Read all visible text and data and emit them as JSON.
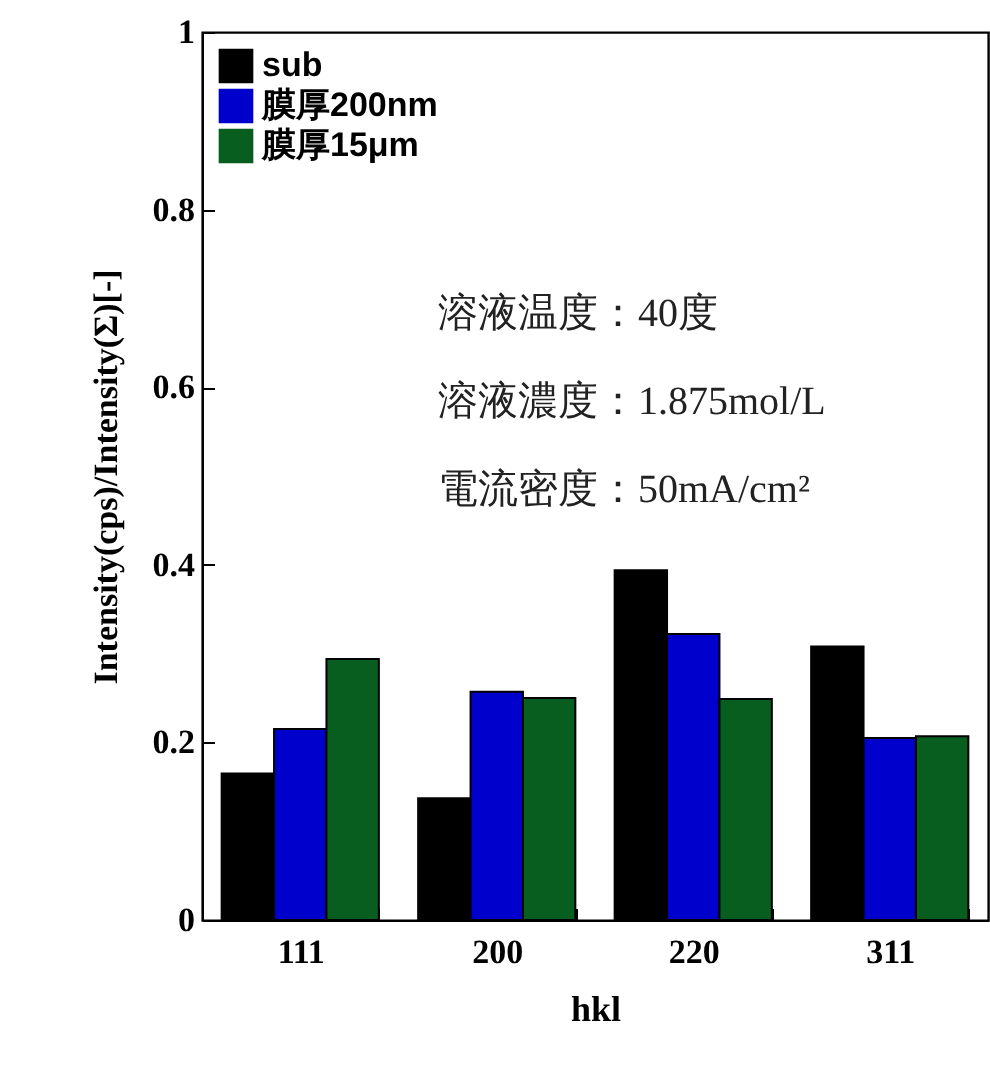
{
  "chart_data": {
    "type": "bar",
    "xlabel": "hkl",
    "ylabel": "Intensity(cps)/Intensity(Σ)[-]",
    "categories": [
      "111",
      "200",
      "220",
      "311"
    ],
    "series": [
      {
        "name": "sub",
        "color": "#000000",
        "values": [
          0.165,
          0.137,
          0.394,
          0.308
        ]
      },
      {
        "name": "膜厚200nm",
        "color": "#0000cc",
        "values": [
          0.215,
          0.257,
          0.322,
          0.205
        ]
      },
      {
        "name": "膜厚15μm",
        "color": "#085e1e",
        "values": [
          0.294,
          0.25,
          0.249,
          0.207
        ]
      }
    ],
    "ylim": [
      0,
      1
    ],
    "yticks": [
      0,
      0.2,
      0.4,
      0.6,
      0.8,
      1
    ],
    "legend": "top left",
    "annotations": [
      "溶液温度：40度",
      "溶液濃度：1.875mol/L",
      "電流密度：50mA/cm²"
    ]
  }
}
